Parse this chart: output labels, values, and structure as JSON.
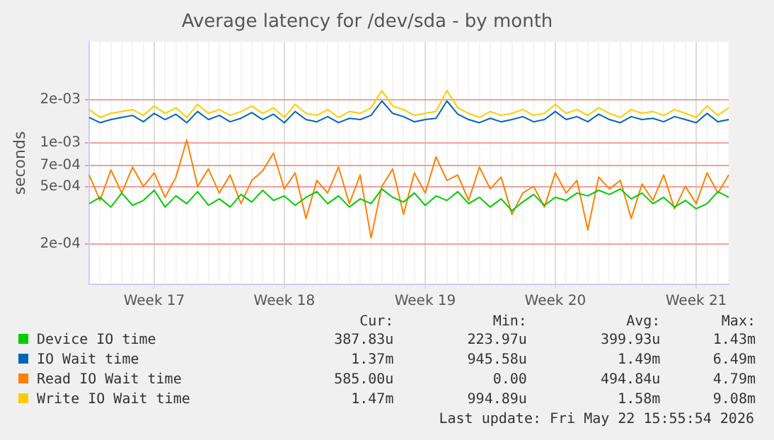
{
  "chart_data": {
    "type": "line",
    "title": "Average latency for /dev/sda - by month",
    "ylabel": "seconds",
    "log": "y",
    "grid": true,
    "legend": "bottom",
    "marker": "none",
    "line_style": "solid",
    "categories": [
      null,
      null,
      null,
      null,
      null,
      null,
      "Week 17",
      null,
      null,
      null,
      null,
      null,
      null,
      null,
      null,
      null,
      null,
      null,
      "Week 18",
      null,
      null,
      null,
      null,
      null,
      null,
      null,
      null,
      null,
      null,
      null,
      null,
      "Week 19",
      null,
      null,
      null,
      null,
      null,
      null,
      null,
      null,
      null,
      null,
      null,
      "Week 20",
      null,
      null,
      null,
      null,
      null,
      null,
      null,
      null,
      null,
      null,
      null,
      null,
      "Week 21",
      null,
      null,
      null
    ],
    "ylim": [
      0.000105,
      0.005
    ],
    "yticks": [
      {
        "value": 0.0002,
        "label": "2e-04"
      },
      {
        "value": 0.0005,
        "label": "5e-04"
      },
      {
        "value": 0.0007,
        "label": "7e-04"
      },
      {
        "value": 0.001,
        "label": "1e-03"
      },
      {
        "value": 0.002,
        "label": "2e-03"
      }
    ],
    "series": [
      {
        "name": "Device IO time",
        "color": "#00cc00",
        "values": [
          0.00038,
          0.00042,
          0.00036,
          0.00045,
          0.00037,
          0.0004,
          0.00047,
          0.00036,
          0.00043,
          0.00038,
          0.00046,
          0.00037,
          0.00041,
          0.00036,
          0.00044,
          0.00039,
          0.00047,
          0.0004,
          0.00043,
          0.00037,
          0.00042,
          0.00046,
          0.00038,
          0.00043,
          0.00036,
          0.00041,
          0.00038,
          0.00048,
          0.00042,
          0.00039,
          0.00045,
          0.00037,
          0.00043,
          0.0004,
          0.00046,
          0.00038,
          0.00042,
          0.00036,
          0.00041,
          0.00034,
          0.00039,
          0.00044,
          0.00037,
          0.00042,
          0.0004,
          0.00045,
          0.00043,
          0.00047,
          0.00044,
          0.00048,
          0.00041,
          0.00045,
          0.00038,
          0.00042,
          0.00036,
          0.0004,
          0.00035,
          0.00038,
          0.00046,
          0.00042
        ]
      },
      {
        "name": "IO Wait time",
        "color": "#0066b3",
        "values": [
          0.0015,
          0.00138,
          0.00145,
          0.0015,
          0.00155,
          0.0014,
          0.0016,
          0.00145,
          0.00158,
          0.00138,
          0.00165,
          0.00145,
          0.00155,
          0.0014,
          0.00148,
          0.00162,
          0.00145,
          0.00158,
          0.00138,
          0.00165,
          0.00145,
          0.0014,
          0.00152,
          0.00138,
          0.00148,
          0.00145,
          0.00155,
          0.00195,
          0.0016,
          0.00152,
          0.0014,
          0.00145,
          0.00148,
          0.00195,
          0.00158,
          0.00145,
          0.00138,
          0.00148,
          0.0014,
          0.00145,
          0.00152,
          0.0014,
          0.00145,
          0.00165,
          0.00145,
          0.00152,
          0.0014,
          0.00158,
          0.00145,
          0.00138,
          0.00152,
          0.00145,
          0.00148,
          0.0014,
          0.00152,
          0.00145,
          0.00138,
          0.0016,
          0.0014,
          0.00145
        ]
      },
      {
        "name": "Read IO Wait time",
        "color": "#ff8000",
        "values": [
          0.0006,
          0.0004,
          0.00065,
          0.00045,
          0.00068,
          0.0005,
          0.00062,
          0.00042,
          0.00058,
          0.00105,
          0.0005,
          0.00066,
          0.00045,
          0.0006,
          0.00038,
          0.00055,
          0.00064,
          0.00085,
          0.00048,
          0.00062,
          0.0003,
          0.00055,
          0.00045,
          0.00068,
          0.00038,
          0.0006,
          0.00022,
          0.0005,
          0.00066,
          0.00032,
          0.00062,
          0.00045,
          0.0008,
          0.00055,
          0.0006,
          0.0004,
          0.00068,
          0.00048,
          0.00058,
          0.00032,
          0.00045,
          0.0005,
          0.00036,
          0.00062,
          0.00045,
          0.00055,
          0.00025,
          0.00058,
          0.00048,
          0.00055,
          0.0003,
          0.00052,
          0.0004,
          0.0006,
          0.00035,
          0.0005,
          0.00038,
          0.00062,
          0.00045,
          0.0006
        ]
      },
      {
        "name": "Write IO Wait time",
        "color": "#ffcc00",
        "values": [
          0.0017,
          0.0015,
          0.0016,
          0.00165,
          0.0017,
          0.00155,
          0.0018,
          0.0016,
          0.00175,
          0.0015,
          0.00185,
          0.0016,
          0.0017,
          0.00155,
          0.00165,
          0.0018,
          0.0016,
          0.00175,
          0.0015,
          0.00185,
          0.0016,
          0.00155,
          0.0017,
          0.0015,
          0.00165,
          0.0016,
          0.00175,
          0.0023,
          0.0018,
          0.0017,
          0.00155,
          0.0016,
          0.00165,
          0.0023,
          0.00175,
          0.0016,
          0.0015,
          0.00165,
          0.00155,
          0.0016,
          0.0017,
          0.00155,
          0.0016,
          0.00185,
          0.0016,
          0.0017,
          0.00155,
          0.00175,
          0.0016,
          0.0015,
          0.0017,
          0.0016,
          0.00165,
          0.00155,
          0.0017,
          0.0016,
          0.0015,
          0.0018,
          0.00155,
          0.00175
        ]
      }
    ],
    "annotations": [
      "Cur:",
      "Min:",
      "Avg:",
      "Max:",
      "387.83u",
      "223.97u",
      "399.93u",
      "1.43m",
      "1.37m",
      "945.58u",
      "1.49m",
      "6.49m",
      "585.00u",
      "0.00",
      "494.84u",
      "4.79m",
      "1.47m",
      "994.89u",
      "1.58m",
      "9.08m",
      "Last update: Fri May 22 15:55:54 2026"
    ]
  }
}
